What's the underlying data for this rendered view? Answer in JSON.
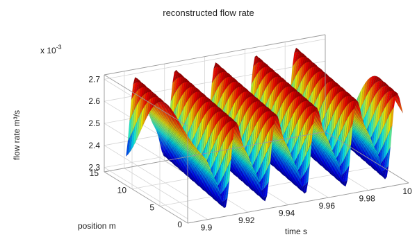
{
  "chart_data": {
    "type": "surface",
    "title": "reconstructed flow rate",
    "xlabel": "time s",
    "ylabel": "position m",
    "zlabel": "flow rate m³/s",
    "z_multiplier_label": "x 10",
    "z_multiplier_exponent": "-3",
    "x_range": [
      9.89,
      10.0
    ],
    "y_range": [
      0,
      15
    ],
    "z_range": [
      2.28,
      2.72
    ],
    "x_ticks": [
      "9.9",
      "9.92",
      "9.94",
      "9.96",
      "9.98",
      "10"
    ],
    "y_ticks": [
      "0",
      "5",
      "10",
      "15"
    ],
    "z_ticks": [
      "2.3",
      "2.4",
      "2.5",
      "2.6",
      "2.7"
    ],
    "colormap": "jet",
    "grid": true,
    "waveform": {
      "mean": 2.5,
      "amplitude": 0.2,
      "temporal_frequency_hz": 50,
      "spatial_period_m": 30,
      "shape": "sawtooth-like, sharp drop",
      "description_values": {
        "peak": 2.7,
        "trough": 2.3
      }
    }
  }
}
